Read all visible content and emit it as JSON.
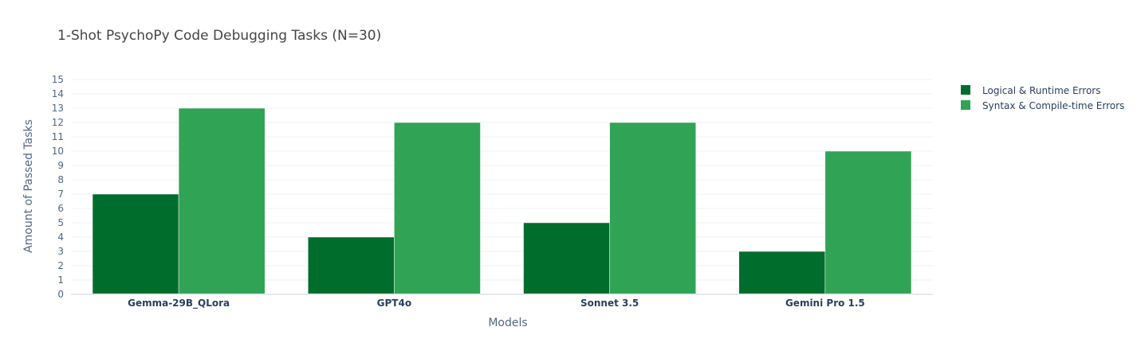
{
  "chart_data": {
    "type": "bar",
    "title": "1-Shot PsychoPy Code Debugging Tasks (N=30)",
    "xlabel": "Models",
    "ylabel": "Amount of Passed Tasks",
    "categories": [
      "Gemma-29B_QLora",
      "GPT4o",
      "Sonnet 3.5",
      "Gemini Pro 1.5"
    ],
    "series": [
      {
        "name": "Logical & Runtime Errors",
        "values": [
          7,
          4,
          5,
          3
        ],
        "color": "#006d2c"
      },
      {
        "name": "Syntax & Compile-time Errors",
        "values": [
          13,
          12,
          12,
          10
        ],
        "color": "#31a354"
      }
    ],
    "ylim": [
      0,
      15
    ],
    "yticks": [
      0,
      1,
      2,
      3,
      4,
      5,
      6,
      7,
      8,
      9,
      10,
      11,
      12,
      13,
      14,
      15
    ],
    "grid": true,
    "legend_position": "top-right"
  }
}
